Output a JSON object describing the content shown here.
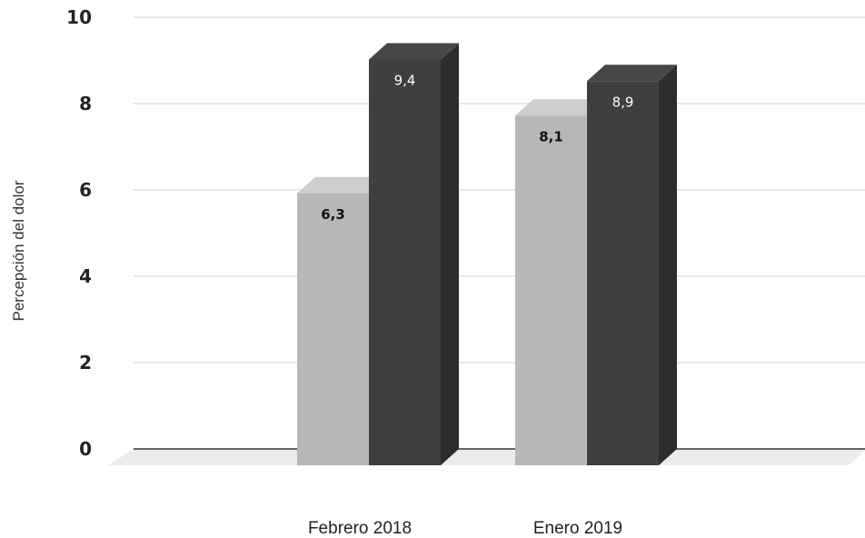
{
  "chart_data": {
    "type": "bar",
    "categories": [
      "Febrero 2018",
      "Enero 2019"
    ],
    "series": [
      {
        "values": [
          6.3,
          8.1
        ],
        "labels": [
          "6,3",
          "8,1"
        ],
        "color": "#b7b7b7",
        "label_color": "#111111"
      },
      {
        "values": [
          9.4,
          8.9
        ],
        "labels": [
          "9,4",
          "8,9"
        ],
        "color": "#3f3f3f",
        "label_color": "#ffffff"
      }
    ],
    "ylabel": "Percepción del dolor",
    "ylim": [
      0,
      10
    ],
    "yticks": [
      0,
      2,
      4,
      6,
      8,
      10
    ],
    "grid": true,
    "legend": "none",
    "style": "3d"
  }
}
